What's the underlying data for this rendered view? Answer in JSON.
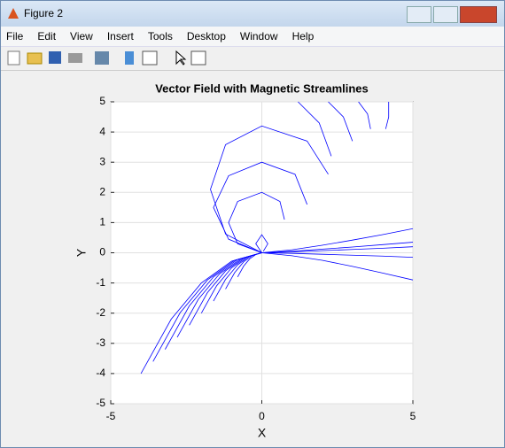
{
  "window": {
    "title": "Figure 2"
  },
  "menu": [
    "File",
    "Edit",
    "View",
    "Insert",
    "Tools",
    "Desktop",
    "Window",
    "Help"
  ],
  "chart_data": {
    "type": "line",
    "title": "Vector Field with Magnetic Streamlines",
    "x_label": "X",
    "y_label": "Y",
    "color": "#0000ff",
    "grid": true,
    "xlim": [
      -5,
      5
    ],
    "ylim": [
      -5,
      5
    ],
    "xticks": [
      -5,
      0,
      5
    ],
    "yticks": [
      -5,
      -4,
      -3,
      -2,
      -1,
      0,
      1,
      2,
      3,
      4,
      5
    ],
    "lines": [
      {
        "x": [
          0,
          -1,
          -2,
          -3,
          -4
        ],
        "y": [
          0,
          -0.28,
          -1,
          -2.2,
          -4
        ]
      },
      {
        "x": [
          0,
          -0.9,
          -1.8,
          -2.7,
          -3.6
        ],
        "y": [
          0,
          -0.25,
          -0.9,
          -1.98,
          -3.6
        ]
      },
      {
        "x": [
          0,
          -0.8,
          -1.6,
          -2.4,
          -3.2
        ],
        "y": [
          0,
          -0.22,
          -0.8,
          -1.76,
          -3.2
        ]
      },
      {
        "x": [
          0,
          -0.7,
          -1.4,
          -2.1,
          -2.8
        ],
        "y": [
          0,
          -0.2,
          -0.7,
          -1.54,
          -2.8
        ]
      },
      {
        "x": [
          0,
          -0.6,
          -1.2,
          -1.8,
          -2.4
        ],
        "y": [
          0,
          -0.17,
          -0.6,
          -1.32,
          -2.4
        ]
      },
      {
        "x": [
          0,
          -0.5,
          -1,
          -1.5,
          -2
        ],
        "y": [
          0,
          -0.14,
          -0.5,
          -1.1,
          -2
        ]
      },
      {
        "x": [
          0,
          -0.4,
          -0.8,
          -1.2,
          -1.6
        ],
        "y": [
          0,
          -0.11,
          -0.4,
          -0.88,
          -1.6
        ]
      },
      {
        "x": [
          0,
          -0.3,
          -0.6,
          -0.9,
          -1.2
        ],
        "y": [
          0,
          -0.08,
          -0.3,
          -0.66,
          -1.2
        ]
      },
      {
        "x": [
          0,
          -0.2,
          -0.4,
          -0.6,
          -0.8
        ],
        "y": [
          0,
          -0.06,
          -0.2,
          -0.44,
          -0.8
        ]
      },
      {
        "x": [
          0,
          1,
          2,
          3,
          4,
          5
        ],
        "y": [
          0,
          0.1,
          0.25,
          0.42,
          0.6,
          0.8
        ]
      },
      {
        "x": [
          0,
          1,
          2,
          3,
          4,
          5
        ],
        "y": [
          0,
          0.05,
          0.12,
          0.19,
          0.27,
          0.35
        ]
      },
      {
        "x": [
          0,
          1,
          2,
          3,
          4,
          5
        ],
        "y": [
          0,
          0.03,
          0.07,
          0.11,
          0.15,
          0.2
        ]
      },
      {
        "x": [
          0,
          1,
          2,
          3,
          4,
          5
        ],
        "y": [
          0,
          -0.02,
          -0.05,
          -0.08,
          -0.11,
          -0.15
        ]
      },
      {
        "x": [
          0,
          1,
          2,
          3,
          4,
          5
        ],
        "y": [
          0,
          -0.1,
          -0.25,
          -0.45,
          -0.67,
          -0.9
        ]
      },
      {
        "x": [
          0,
          -1.2,
          -1.7,
          -1.2,
          0,
          1.5,
          2.2
        ],
        "y": [
          0,
          0.62,
          2.1,
          3.58,
          4.2,
          3.7,
          2.6
        ]
      },
      {
        "x": [
          0,
          -1.1,
          -1.6,
          -1.1,
          0,
          1.1,
          1.5
        ],
        "y": [
          0,
          0.45,
          1.5,
          2.55,
          3,
          2.6,
          1.6
        ]
      },
      {
        "x": [
          0,
          -0.8,
          -1.1,
          -0.8,
          0,
          0.6,
          0.75
        ],
        "y": [
          0,
          0.3,
          1,
          1.7,
          2,
          1.7,
          1.1
        ]
      },
      {
        "x": [
          0,
          -0.2,
          0,
          0.2,
          0.05
        ],
        "y": [
          0,
          0.3,
          0.6,
          0.3,
          0.05
        ]
      },
      {
        "x": [
          1.2,
          1.9,
          2.3
        ],
        "y": [
          5,
          4.3,
          3.2
        ]
      },
      {
        "x": [
          2.2,
          2.7,
          3.0
        ],
        "y": [
          5,
          4.5,
          3.7
        ]
      },
      {
        "x": [
          3.2,
          3.5,
          3.6
        ],
        "y": [
          5,
          4.6,
          4.1
        ]
      },
      {
        "x": [
          4.2,
          4.2,
          4.1
        ],
        "y": [
          5,
          4.5,
          4.1
        ]
      }
    ]
  }
}
